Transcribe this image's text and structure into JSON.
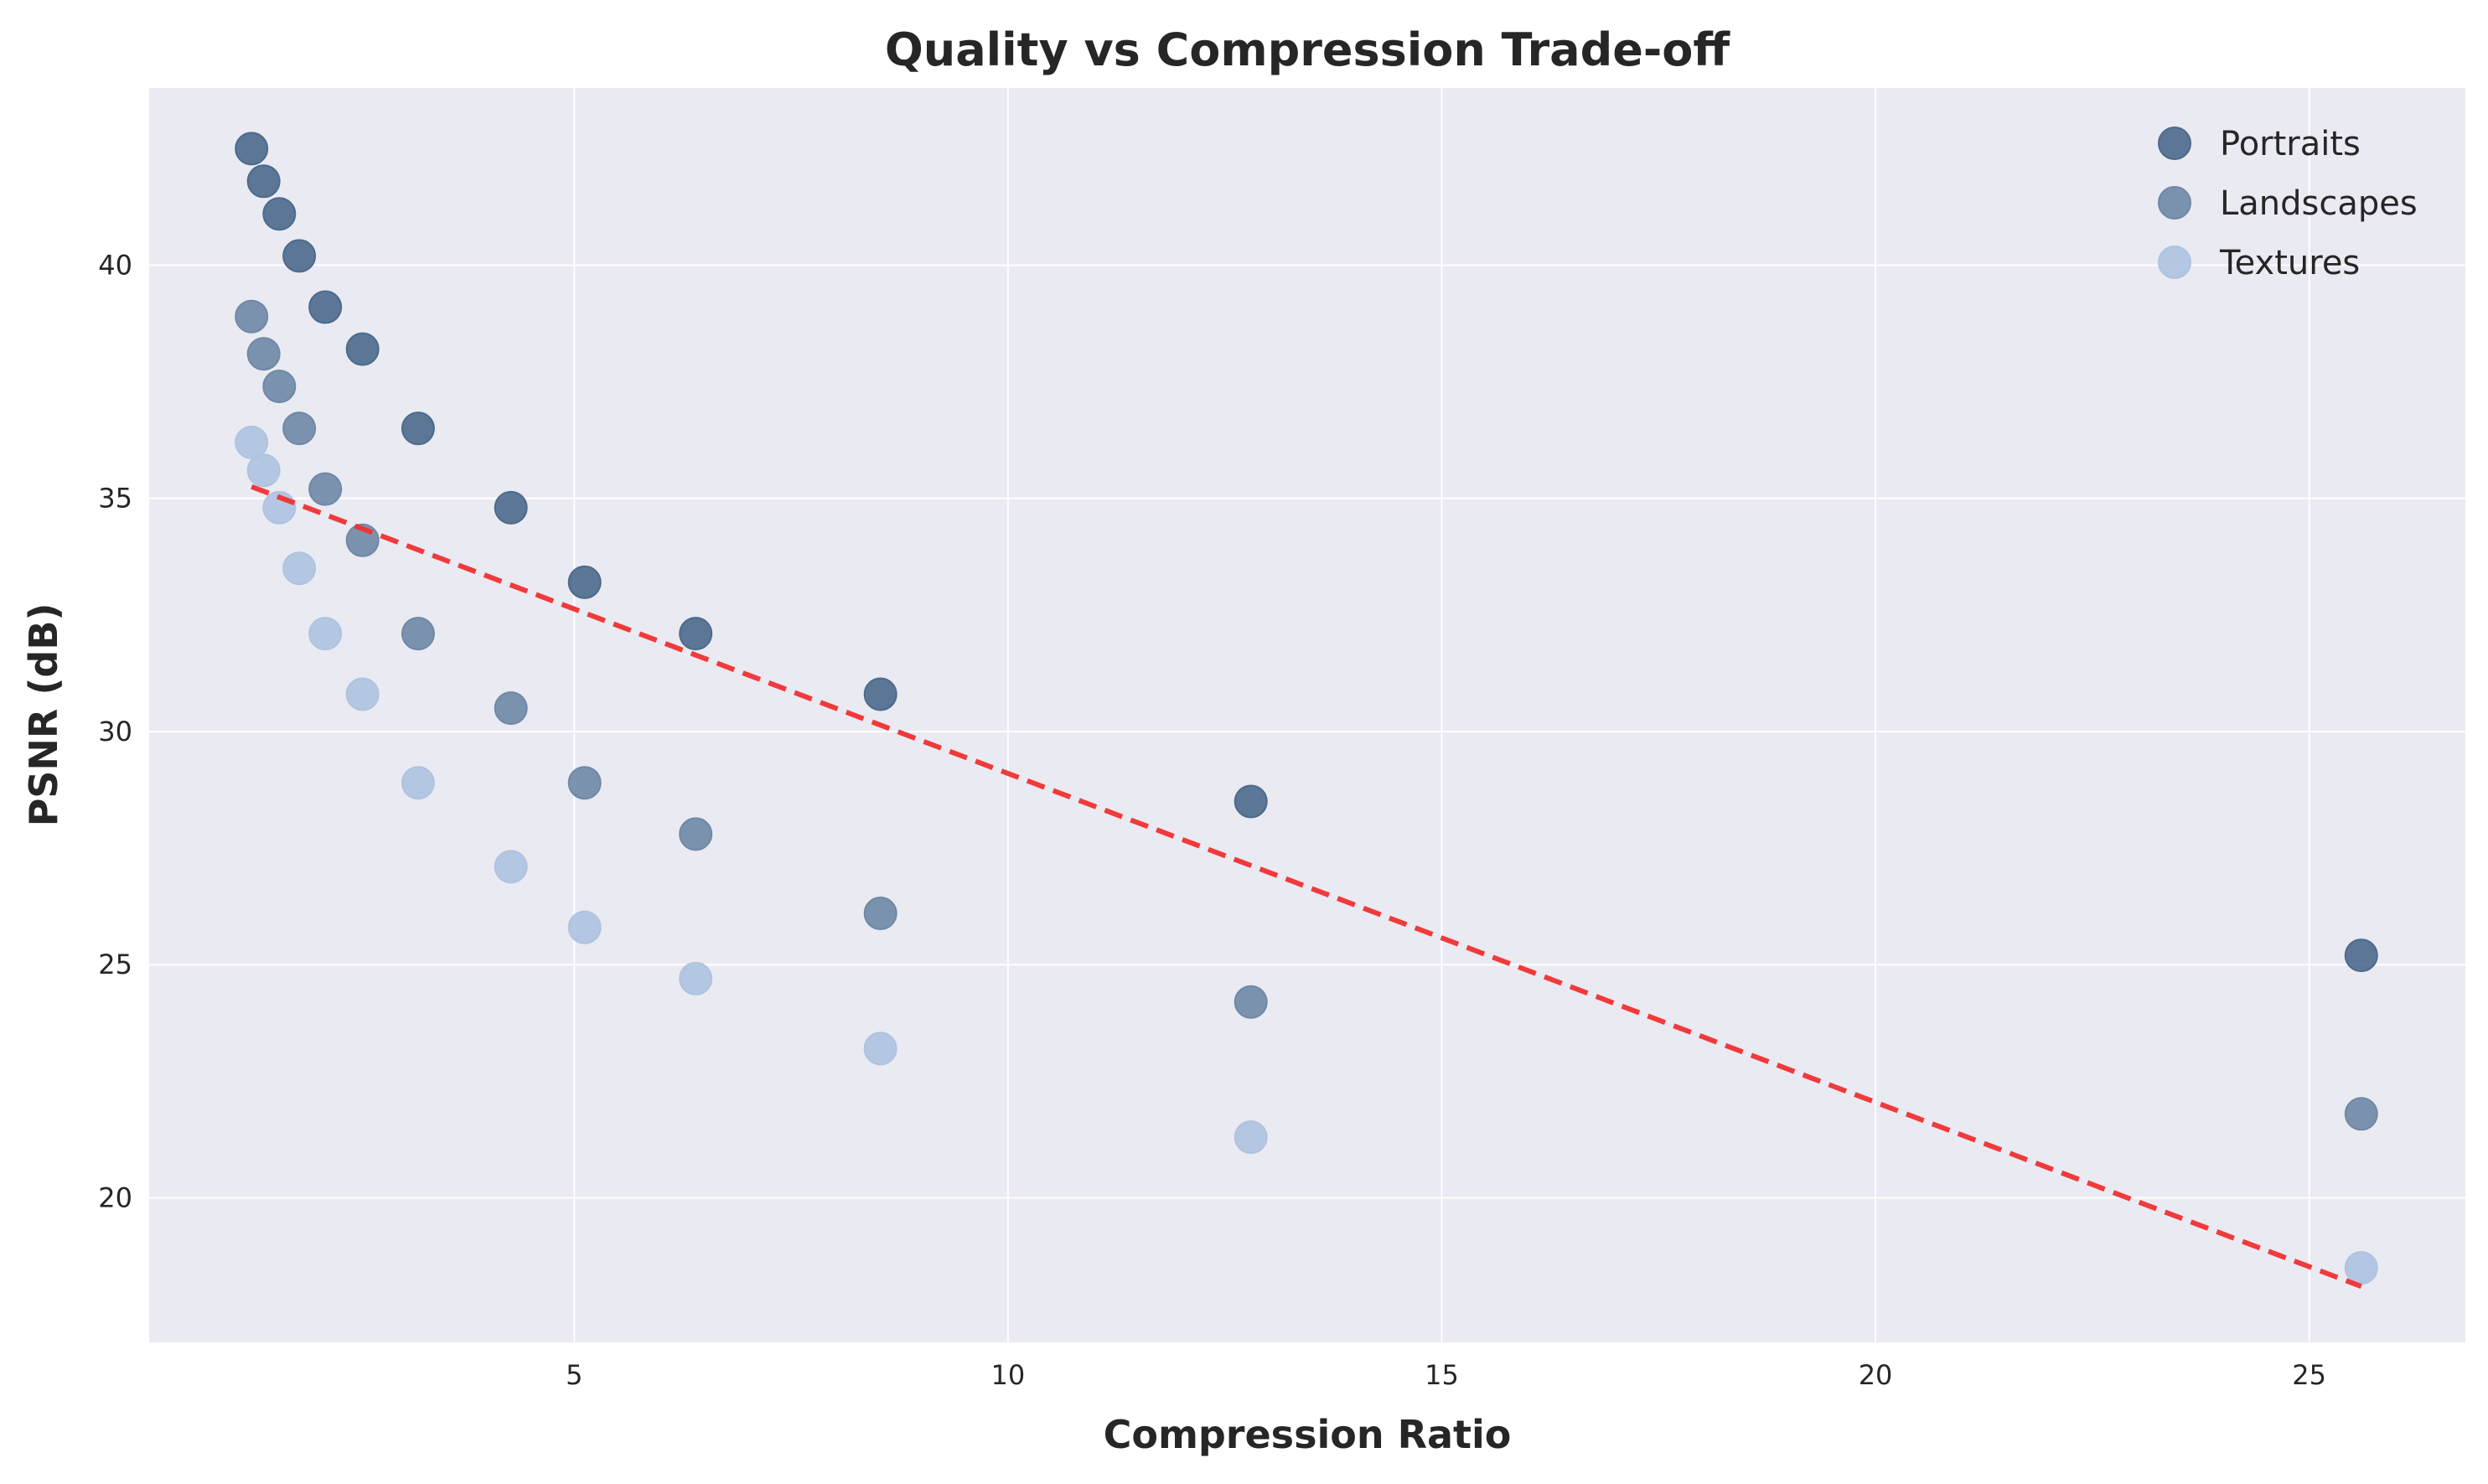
{
  "chart_data": {
    "type": "scatter",
    "title": "Quality vs Compression Trade-off",
    "xlabel": "Compression Ratio",
    "ylabel": "PSNR (dB)",
    "xlim": [
      0.1,
      26.8
    ],
    "ylim": [
      16.9,
      43.8
    ],
    "xticks": [
      5,
      10,
      15,
      20,
      25
    ],
    "yticks": [
      20,
      25,
      30,
      35,
      40
    ],
    "grid": true,
    "legend_position": "top-right",
    "x": [
      1.28,
      1.42,
      1.6,
      1.83,
      2.13,
      2.56,
      3.2,
      4.27,
      5.12,
      6.4,
      8.53,
      12.8,
      25.6
    ],
    "series": [
      {
        "name": "Portraits",
        "color": "#4c6a8c",
        "values": [
          42.5,
          41.8,
          41.1,
          40.2,
          39.1,
          38.2,
          36.5,
          34.8,
          33.2,
          32.1,
          30.8,
          28.5,
          25.2
        ]
      },
      {
        "name": "Landscapes",
        "color": "#6f88a6",
        "values": [
          38.9,
          38.1,
          37.4,
          36.5,
          35.2,
          34.1,
          32.1,
          30.5,
          28.9,
          27.8,
          26.1,
          24.2,
          21.8
        ]
      },
      {
        "name": "Textures",
        "color": "#aec3e0",
        "values": [
          36.2,
          35.6,
          34.8,
          33.5,
          32.1,
          30.8,
          28.9,
          27.1,
          25.8,
          24.7,
          23.2,
          21.3,
          18.5
        ]
      }
    ],
    "trendline": {
      "style": "dashed",
      "color": "#f03030",
      "x": [
        1.28,
        25.6
      ],
      "y": [
        35.25,
        18.1
      ]
    }
  }
}
